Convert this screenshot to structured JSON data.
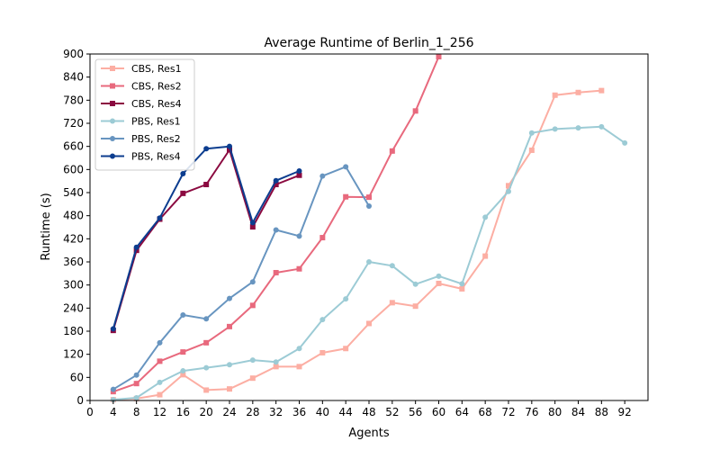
{
  "chart_data": {
    "type": "line",
    "title": "Average Runtime of Berlin_1_256",
    "xlabel": "Agents",
    "ylabel": "Runtime (s)",
    "xlim": [
      0,
      96
    ],
    "ylim": [
      0,
      900
    ],
    "xticks": [
      0,
      4,
      8,
      12,
      16,
      20,
      24,
      28,
      32,
      36,
      40,
      44,
      48,
      52,
      56,
      60,
      64,
      68,
      72,
      76,
      80,
      84,
      88,
      92
    ],
    "yticks": [
      0,
      60,
      120,
      180,
      240,
      300,
      360,
      420,
      480,
      540,
      600,
      660,
      720,
      780,
      840,
      900
    ],
    "grid": false,
    "legend_position": "top-left",
    "series": [
      {
        "name": "CBS, Res1",
        "color": "#fcaea3",
        "marker": "square",
        "x": [
          4,
          8,
          12,
          16,
          20,
          24,
          28,
          32,
          36,
          40,
          44,
          48,
          52,
          56,
          60,
          64,
          68,
          72,
          76,
          80,
          84,
          88
        ],
        "y": [
          2,
          5,
          15,
          67,
          27,
          30,
          58,
          88,
          88,
          124,
          135,
          200,
          254,
          245,
          304,
          290,
          375,
          558,
          650,
          793,
          800,
          805
        ]
      },
      {
        "name": "CBS, Res2",
        "color": "#e8697d",
        "marker": "square",
        "x": [
          4,
          8,
          12,
          16,
          20,
          24,
          28,
          32,
          36,
          40,
          44,
          48,
          52,
          56,
          60
        ],
        "y": [
          23,
          44,
          102,
          126,
          150,
          192,
          247,
          332,
          342,
          423,
          529,
          528,
          648,
          752,
          893
        ]
      },
      {
        "name": "CBS, Res4",
        "color": "#8b0a40",
        "marker": "square",
        "x": [
          4,
          8,
          12,
          16,
          20,
          24,
          28,
          32,
          36
        ],
        "y": [
          182,
          390,
          471,
          538,
          561,
          651,
          451,
          561,
          585
        ]
      },
      {
        "name": "PBS, Res1",
        "color": "#9ccbd5",
        "marker": "circle",
        "x": [
          4,
          8,
          12,
          16,
          20,
          24,
          28,
          32,
          36,
          40,
          44,
          48,
          52,
          56,
          60,
          64,
          68,
          72,
          76,
          80,
          84,
          88,
          92
        ],
        "y": [
          2,
          7,
          47,
          77,
          85,
          93,
          105,
          100,
          135,
          210,
          264,
          360,
          350,
          302,
          323,
          303,
          476,
          543,
          695,
          705,
          708,
          711,
          669
        ]
      },
      {
        "name": "PBS, Res2",
        "color": "#6895c0",
        "marker": "circle",
        "x": [
          4,
          8,
          12,
          16,
          20,
          24,
          28,
          32,
          36,
          40,
          44,
          48
        ],
        "y": [
          29,
          66,
          150,
          222,
          212,
          265,
          308,
          443,
          427,
          583,
          607,
          505
        ]
      },
      {
        "name": "PBS, Res4",
        "color": "#0c3d8f",
        "marker": "circle",
        "x": [
          4,
          8,
          12,
          16,
          20,
          24,
          28,
          32,
          36
        ],
        "y": [
          186,
          398,
          474,
          589,
          654,
          660,
          462,
          571,
          596
        ]
      }
    ]
  }
}
